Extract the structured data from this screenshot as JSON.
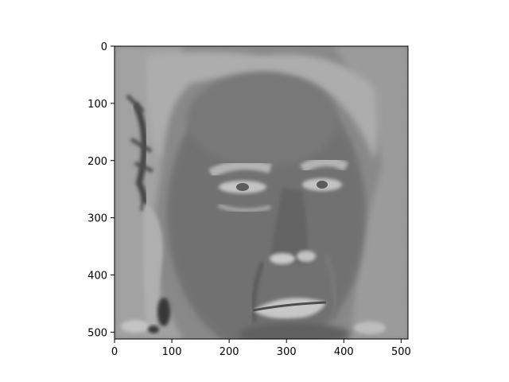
{
  "figure": {
    "image_description": "grayscale inverted-tone portrait of an elderly face"
  },
  "axes": {
    "x_ticks": [
      "0",
      "100",
      "200",
      "300",
      "400",
      "500"
    ],
    "y_ticks": [
      "0",
      "100",
      "200",
      "300",
      "400",
      "500"
    ],
    "x_range": [
      0,
      512
    ],
    "y_range": [
      0,
      512
    ],
    "y_inverted": true
  },
  "colors": {
    "frame": "#000000",
    "background": "#ffffff"
  }
}
